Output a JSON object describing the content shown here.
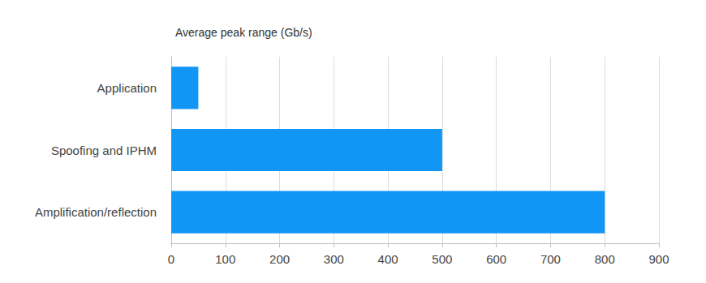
{
  "chart_data": {
    "type": "bar",
    "title": "Average peak range (Gb/s)",
    "categories": [
      "Application",
      "Spoofing and IPHM",
      "Amplification/reflection"
    ],
    "values": [
      50,
      500,
      800
    ],
    "color": "#1196f5",
    "orientation": "horizontal",
    "xlim": [
      0,
      900
    ],
    "xticks": [
      0,
      100,
      200,
      300,
      400,
      500,
      600,
      700,
      800,
      900
    ],
    "grid": true
  }
}
